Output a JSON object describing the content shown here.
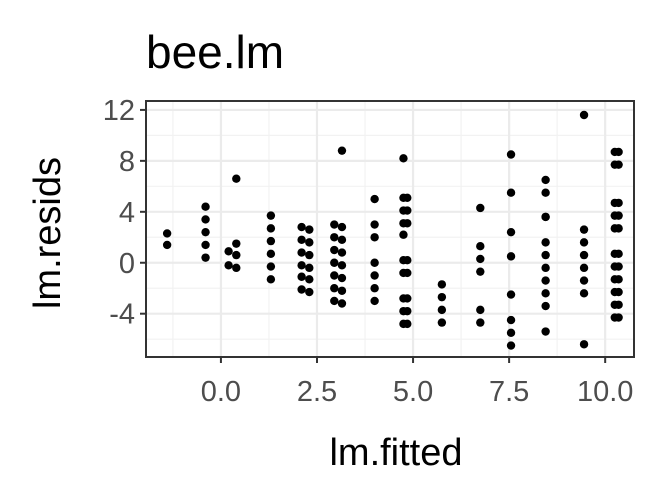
{
  "chart_data": {
    "type": "scatter",
    "title": "bee.lm",
    "xlabel": "lm.fitted",
    "ylabel": "lm.resids",
    "xlim": [
      -1.95,
      10.75
    ],
    "ylim": [
      -7.4,
      12.7
    ],
    "x_ticks": [
      0.0,
      2.5,
      5.0,
      7.5,
      10.0
    ],
    "x_tick_labels": [
      "0.0",
      "2.5",
      "5.0",
      "7.5",
      "10.0"
    ],
    "y_ticks": [
      -4,
      0,
      4,
      8,
      12
    ],
    "y_tick_labels": [
      "-4",
      "0",
      "4",
      "8",
      "12"
    ],
    "grid": true,
    "theme": "bw",
    "point_color": "#000000",
    "points": [
      [
        -1.4,
        2.3
      ],
      [
        -1.4,
        1.4
      ],
      [
        -0.4,
        4.4
      ],
      [
        -0.4,
        3.4
      ],
      [
        -0.4,
        2.4
      ],
      [
        -0.4,
        1.4
      ],
      [
        -0.4,
        0.4
      ],
      [
        0.2,
        0.9
      ],
      [
        0.2,
        -0.2
      ],
      [
        0.4,
        6.6
      ],
      [
        0.4,
        1.5
      ],
      [
        0.4,
        0.6
      ],
      [
        0.4,
        -0.4
      ],
      [
        1.3,
        3.7
      ],
      [
        1.3,
        2.7
      ],
      [
        1.3,
        1.7
      ],
      [
        1.3,
        0.7
      ],
      [
        1.3,
        -0.3
      ],
      [
        1.3,
        -1.3
      ],
      [
        2.1,
        2.8
      ],
      [
        2.1,
        1.8
      ],
      [
        2.1,
        0.8
      ],
      [
        2.1,
        -0.2
      ],
      [
        2.1,
        -1.1
      ],
      [
        2.1,
        -2.1
      ],
      [
        2.3,
        2.6
      ],
      [
        2.3,
        1.6
      ],
      [
        2.3,
        0.6
      ],
      [
        2.3,
        -0.4
      ],
      [
        2.3,
        -1.3
      ],
      [
        2.3,
        -2.3
      ],
      [
        2.95,
        3.0
      ],
      [
        2.95,
        2.0
      ],
      [
        2.95,
        1.0
      ],
      [
        2.95,
        0.0
      ],
      [
        2.95,
        -1.0
      ],
      [
        2.95,
        -2.0
      ],
      [
        2.95,
        -3.0
      ],
      [
        3.15,
        8.8
      ],
      [
        3.15,
        2.8
      ],
      [
        3.15,
        1.8
      ],
      [
        3.15,
        0.8
      ],
      [
        3.15,
        -0.2
      ],
      [
        3.15,
        -1.2
      ],
      [
        3.15,
        -2.2
      ],
      [
        3.15,
        -3.2
      ],
      [
        4.0,
        5.0
      ],
      [
        4.0,
        3.0
      ],
      [
        4.0,
        2.0
      ],
      [
        4.0,
        0.0
      ],
      [
        4.0,
        -1.0
      ],
      [
        4.0,
        -2.0
      ],
      [
        4.0,
        -3.0
      ],
      [
        4.75,
        8.2
      ],
      [
        4.75,
        5.1
      ],
      [
        4.75,
        4.1
      ],
      [
        4.75,
        3.1
      ],
      [
        4.75,
        2.2
      ],
      [
        4.75,
        0.2
      ],
      [
        4.75,
        -0.8
      ],
      [
        4.75,
        -2.8
      ],
      [
        4.75,
        -3.8
      ],
      [
        4.75,
        -4.8
      ],
      [
        4.85,
        5.1
      ],
      [
        4.85,
        4.1
      ],
      [
        4.85,
        3.1
      ],
      [
        4.85,
        0.2
      ],
      [
        4.85,
        -0.8
      ],
      [
        4.85,
        -2.8
      ],
      [
        4.85,
        -3.8
      ],
      [
        4.85,
        -4.8
      ],
      [
        5.75,
        -1.7
      ],
      [
        5.75,
        -2.7
      ],
      [
        5.75,
        -3.7
      ],
      [
        5.75,
        -4.7
      ],
      [
        6.75,
        4.3
      ],
      [
        6.75,
        1.3
      ],
      [
        6.75,
        0.3
      ],
      [
        6.75,
        -0.7
      ],
      [
        6.75,
        -3.7
      ],
      [
        6.75,
        -4.7
      ],
      [
        7.55,
        8.5
      ],
      [
        7.55,
        5.5
      ],
      [
        7.55,
        2.4
      ],
      [
        7.55,
        0.5
      ],
      [
        7.55,
        -2.5
      ],
      [
        7.55,
        -4.5
      ],
      [
        7.55,
        -5.5
      ],
      [
        7.55,
        -6.5
      ],
      [
        8.45,
        6.5
      ],
      [
        8.45,
        5.5
      ],
      [
        8.45,
        3.6
      ],
      [
        8.45,
        3.6
      ],
      [
        8.45,
        1.6
      ],
      [
        8.45,
        0.6
      ],
      [
        8.45,
        -0.4
      ],
      [
        8.45,
        -1.4
      ],
      [
        8.45,
        -2.4
      ],
      [
        8.45,
        -3.4
      ],
      [
        8.45,
        -5.4
      ],
      [
        9.45,
        11.6
      ],
      [
        9.45,
        2.6
      ],
      [
        9.45,
        1.6
      ],
      [
        9.45,
        0.6
      ],
      [
        9.45,
        -0.4
      ],
      [
        9.45,
        -1.4
      ],
      [
        9.45,
        -2.4
      ],
      [
        9.45,
        -6.4
      ],
      [
        10.25,
        8.7
      ],
      [
        10.25,
        7.7
      ],
      [
        10.25,
        4.7
      ],
      [
        10.25,
        3.7
      ],
      [
        10.25,
        2.7
      ],
      [
        10.25,
        0.7
      ],
      [
        10.25,
        -0.3
      ],
      [
        10.25,
        -1.3
      ],
      [
        10.25,
        -2.3
      ],
      [
        10.25,
        -3.3
      ],
      [
        10.25,
        -4.3
      ],
      [
        10.35,
        8.7
      ],
      [
        10.35,
        7.7
      ],
      [
        10.35,
        4.7
      ],
      [
        10.35,
        3.7
      ],
      [
        10.35,
        2.7
      ],
      [
        10.35,
        0.7
      ],
      [
        10.35,
        -0.3
      ],
      [
        10.35,
        -1.3
      ],
      [
        10.35,
        -2.3
      ],
      [
        10.35,
        -3.3
      ],
      [
        10.35,
        -4.3
      ]
    ]
  }
}
